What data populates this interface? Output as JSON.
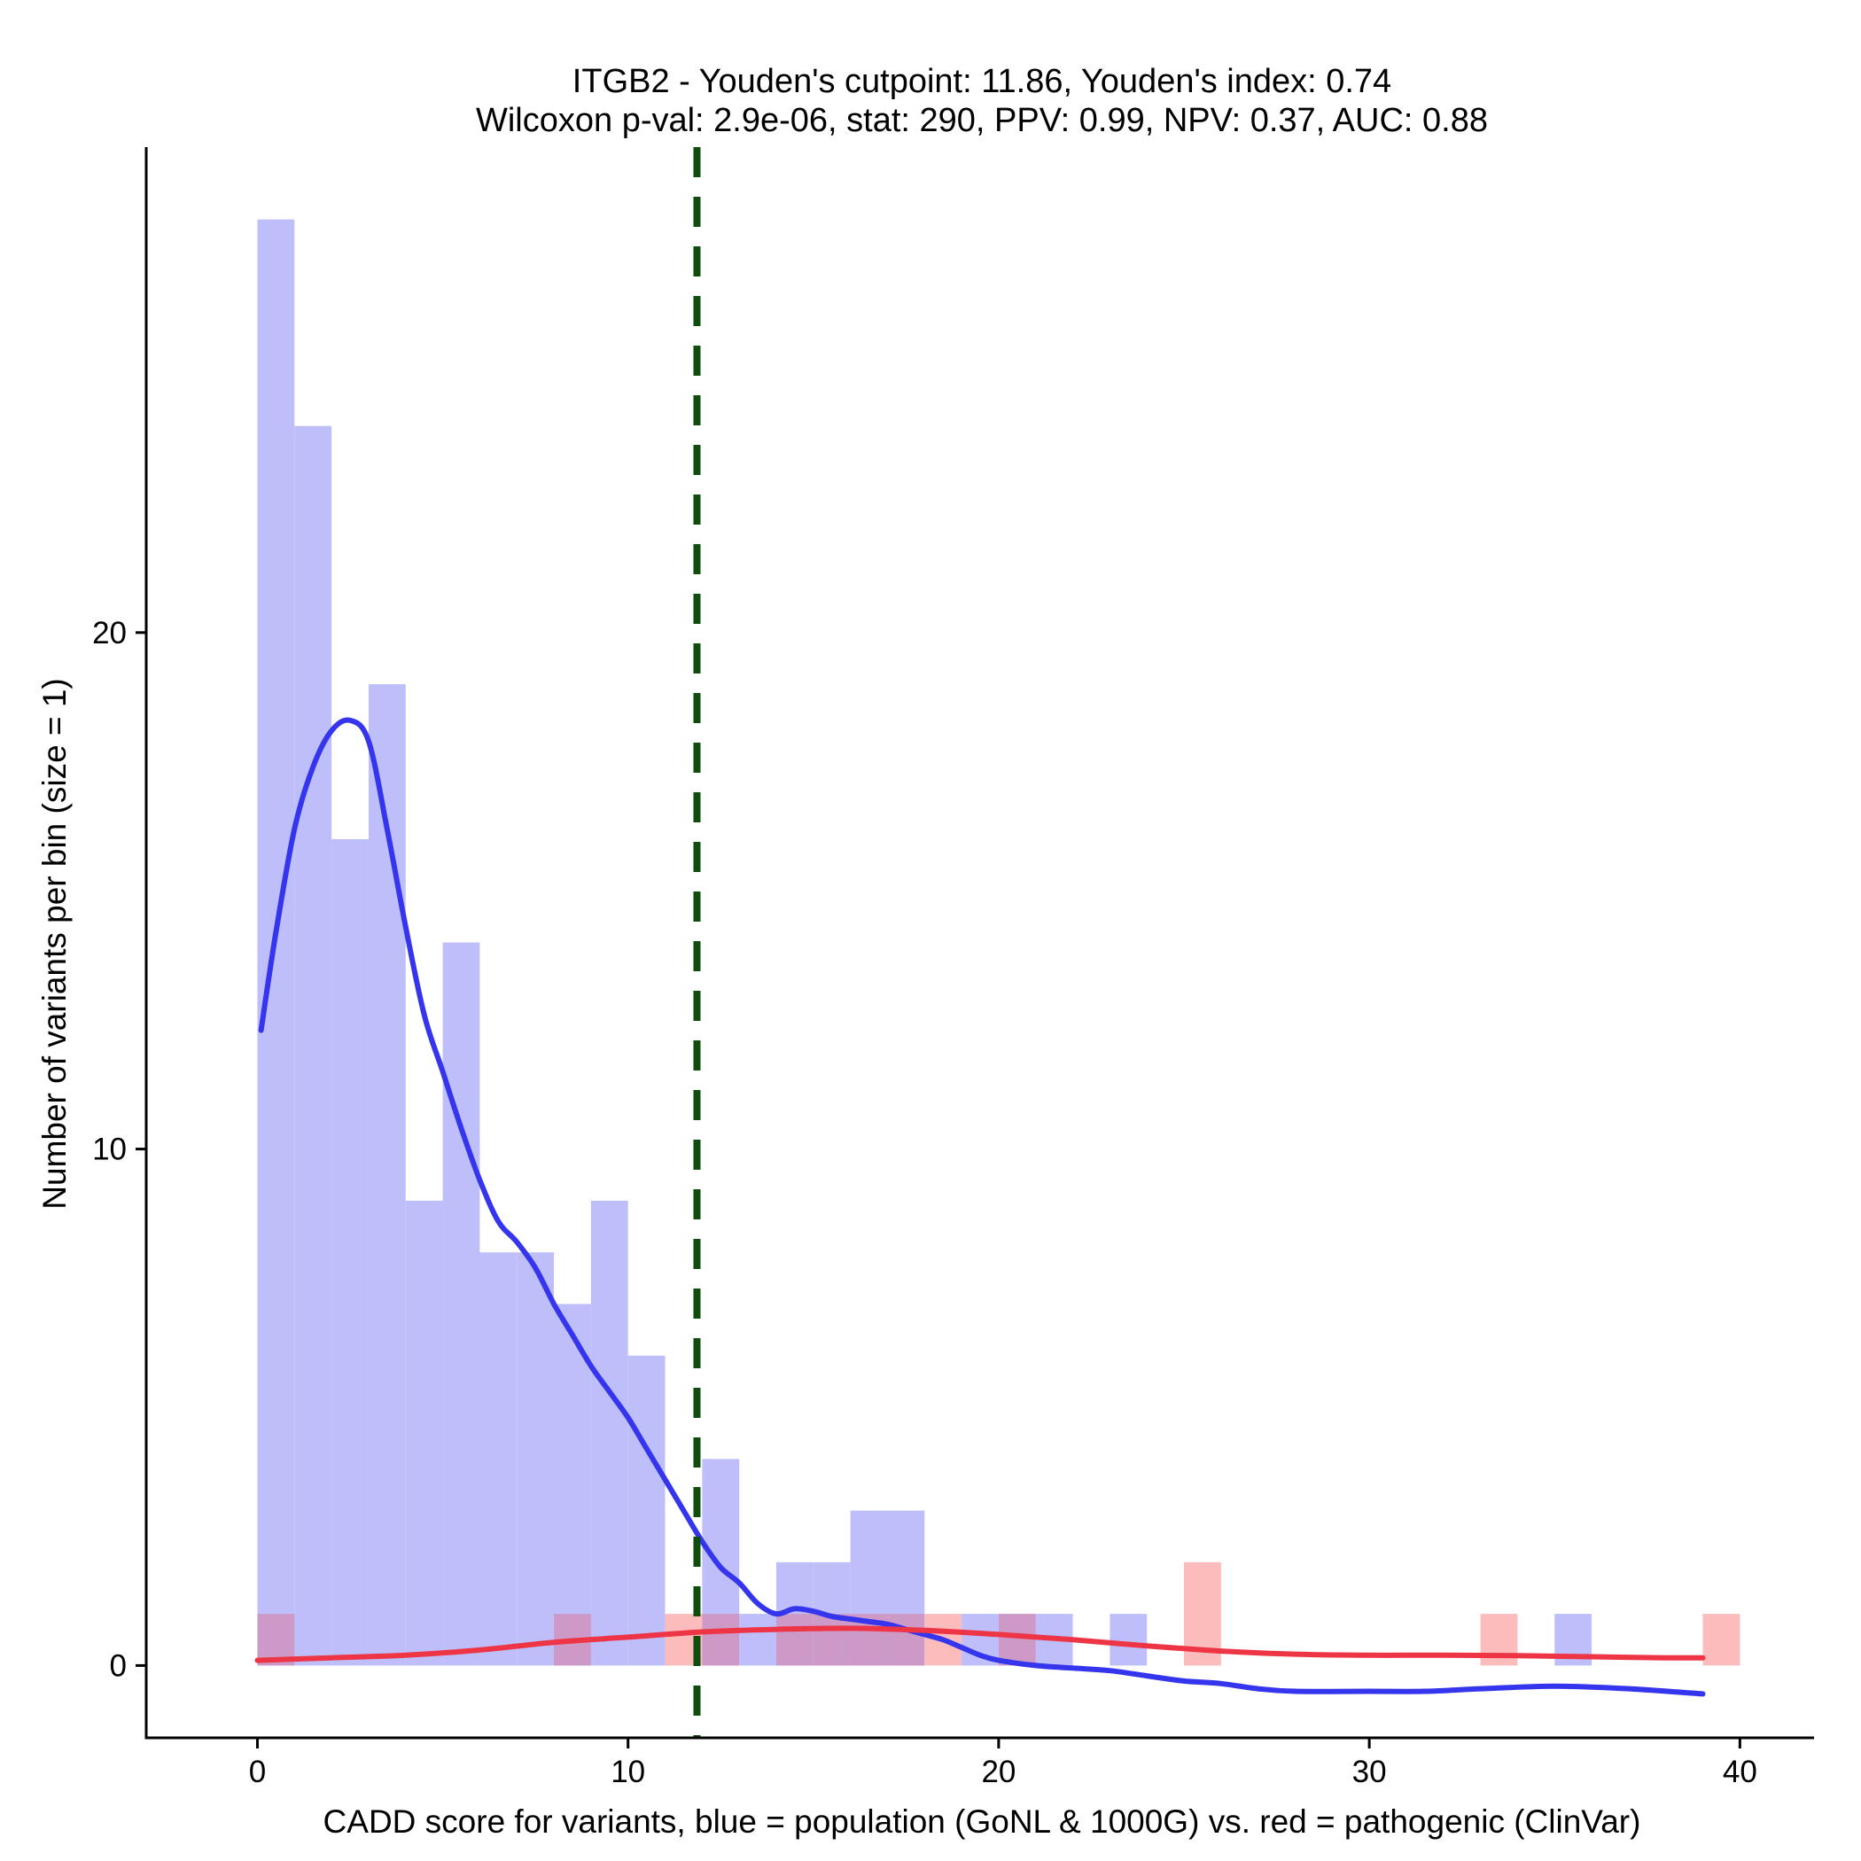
{
  "chart_data": {
    "type": "histogram",
    "title_lines": [
      "ITGB2 - Youden's cutpoint: 11.86, Youden's index: 0.74",
      "Wilcoxon p-val: 2.9e-06, stat: 290, PPV: 0.99, NPV: 0.37, AUC: 0.88"
    ],
    "xlabel": "CADD score for variants, blue = population (GoNL & 1000G) vs. red = pathogenic (ClinVar)",
    "ylabel": "Number of variants per bin (size = 1)",
    "x_ticks": [
      0,
      10,
      20,
      30,
      40
    ],
    "y_ticks": [
      0,
      10,
      20
    ],
    "xlim": [
      -3,
      42
    ],
    "ylim": [
      -1.4,
      29.4
    ],
    "bin_width": 1,
    "cutpoint": 11.86,
    "colors": {
      "population_bar": "#bebefb",
      "pathogenic_bar": "#fcbcbc",
      "overlap_bar": "#cd9ac7",
      "population_line": "#3535ee",
      "pathogenic_line": "#ee3545",
      "cutpoint_line": "#0f4d0f"
    },
    "series": [
      {
        "name": "population",
        "bins": [
          {
            "x0": 0,
            "count": 28
          },
          {
            "x0": 1,
            "count": 24
          },
          {
            "x0": 2,
            "count": 16
          },
          {
            "x0": 3,
            "count": 19
          },
          {
            "x0": 4,
            "count": 9
          },
          {
            "x0": 5,
            "count": 14
          },
          {
            "x0": 6,
            "count": 8
          },
          {
            "x0": 7,
            "count": 8
          },
          {
            "x0": 8,
            "count": 7
          },
          {
            "x0": 9,
            "count": 9
          },
          {
            "x0": 10,
            "count": 6
          },
          {
            "x0": 12,
            "count": 4
          },
          {
            "x0": 13,
            "count": 1
          },
          {
            "x0": 14,
            "count": 2
          },
          {
            "x0": 15,
            "count": 2
          },
          {
            "x0": 16,
            "count": 3
          },
          {
            "x0": 17,
            "count": 3
          },
          {
            "x0": 19,
            "count": 1
          },
          {
            "x0": 20,
            "count": 1
          },
          {
            "x0": 21,
            "count": 1
          },
          {
            "x0": 23,
            "count": 1
          },
          {
            "x0": 35,
            "count": 1
          }
        ],
        "density_curve": [
          [
            0.1,
            12.3
          ],
          [
            0.5,
            14.2
          ],
          [
            1.0,
            16.2
          ],
          [
            1.5,
            17.4
          ],
          [
            2.0,
            18.1
          ],
          [
            2.5,
            18.3
          ],
          [
            3.0,
            17.9
          ],
          [
            3.5,
            16.2
          ],
          [
            4.0,
            14.3
          ],
          [
            4.5,
            12.6
          ],
          [
            5.0,
            11.5
          ],
          [
            5.5,
            10.4
          ],
          [
            6.0,
            9.4
          ],
          [
            6.5,
            8.6
          ],
          [
            7.0,
            8.2
          ],
          [
            7.5,
            7.7
          ],
          [
            8.0,
            7.0
          ],
          [
            8.5,
            6.4
          ],
          [
            9.0,
            5.8
          ],
          [
            9.5,
            5.3
          ],
          [
            10.0,
            4.8
          ],
          [
            10.5,
            4.2
          ],
          [
            11.0,
            3.6
          ],
          [
            11.5,
            3.0
          ],
          [
            12.0,
            2.4
          ],
          [
            12.5,
            1.9
          ],
          [
            13.0,
            1.6
          ],
          [
            13.5,
            1.2
          ],
          [
            14.0,
            1.0
          ],
          [
            14.5,
            1.1
          ],
          [
            15.0,
            1.05
          ],
          [
            15.5,
            0.95
          ],
          [
            16.0,
            0.9
          ],
          [
            16.5,
            0.85
          ],
          [
            17.0,
            0.8
          ],
          [
            17.5,
            0.7
          ],
          [
            18.0,
            0.6
          ],
          [
            18.5,
            0.5
          ],
          [
            19.0,
            0.35
          ],
          [
            19.5,
            0.2
          ],
          [
            20.0,
            0.1
          ],
          [
            21.0,
            0.0
          ],
          [
            22.0,
            -0.05
          ],
          [
            23.0,
            -0.1
          ],
          [
            24.0,
            -0.2
          ],
          [
            25.0,
            -0.3
          ],
          [
            26.0,
            -0.35
          ],
          [
            27.0,
            -0.45
          ],
          [
            28.0,
            -0.5
          ],
          [
            30.0,
            -0.5
          ],
          [
            31.5,
            -0.5
          ],
          [
            33.0,
            -0.45
          ],
          [
            35.0,
            -0.4
          ],
          [
            37.0,
            -0.45
          ],
          [
            39.0,
            -0.55
          ]
        ]
      },
      {
        "name": "pathogenic",
        "bins": [
          {
            "x0": 0,
            "count": 1
          },
          {
            "x0": 8,
            "count": 1
          },
          {
            "x0": 11,
            "count": 1
          },
          {
            "x0": 12,
            "count": 1
          },
          {
            "x0": 14,
            "count": 1
          },
          {
            "x0": 15,
            "count": 1
          },
          {
            "x0": 16,
            "count": 1
          },
          {
            "x0": 17,
            "count": 1
          },
          {
            "x0": 18,
            "count": 1
          },
          {
            "x0": 20,
            "count": 1
          },
          {
            "x0": 25,
            "count": 2
          },
          {
            "x0": 33,
            "count": 1
          },
          {
            "x0": 39,
            "count": 1
          }
        ],
        "density_curve": [
          [
            0,
            0.1
          ],
          [
            2,
            0.15
          ],
          [
            4,
            0.2
          ],
          [
            6,
            0.3
          ],
          [
            8,
            0.45
          ],
          [
            10,
            0.55
          ],
          [
            12,
            0.65
          ],
          [
            14,
            0.7
          ],
          [
            16,
            0.72
          ],
          [
            18,
            0.68
          ],
          [
            20,
            0.6
          ],
          [
            22,
            0.5
          ],
          [
            24,
            0.38
          ],
          [
            26,
            0.28
          ],
          [
            28,
            0.22
          ],
          [
            30,
            0.2
          ],
          [
            32,
            0.2
          ],
          [
            34,
            0.19
          ],
          [
            36,
            0.17
          ],
          [
            38,
            0.15
          ],
          [
            39,
            0.15
          ]
        ]
      }
    ]
  }
}
